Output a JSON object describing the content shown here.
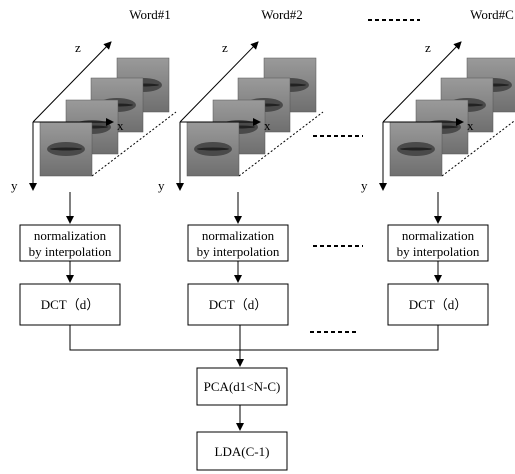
{
  "columns": [
    {
      "word": "Word#1",
      "axes": {
        "z": "z",
        "x": "x",
        "y": "y"
      },
      "normalization": [
        "normalization",
        "by interpolation"
      ],
      "dct": "DCT（d）"
    },
    {
      "word": "Word#2",
      "axes": {
        "z": "z",
        "x": "x",
        "y": "y"
      },
      "normalization": [
        "normalization",
        "by interpolation"
      ],
      "dct": "DCT（d）"
    },
    {
      "word": "Word#C",
      "axes": {
        "z": "z",
        "x": "x",
        "y": "y"
      },
      "normalization": [
        "normalization",
        "by interpolation"
      ],
      "dct": "DCT（d）"
    }
  ],
  "pca": "PCA(d1<N-C)",
  "lda": "LDA(C-1)"
}
